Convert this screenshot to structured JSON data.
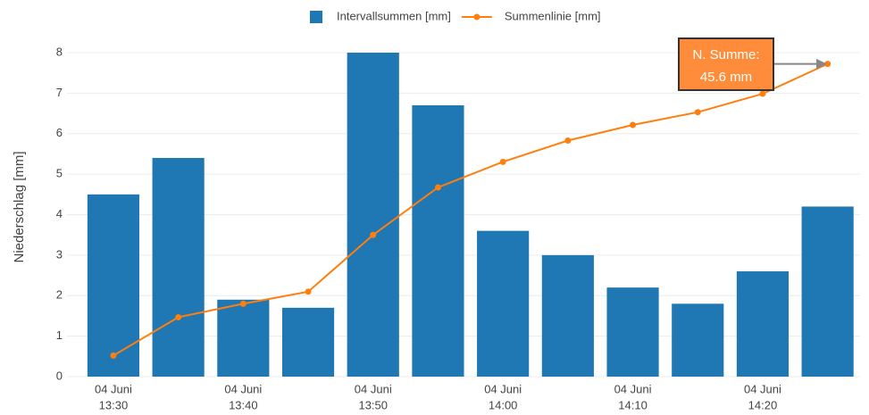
{
  "chart_data": {
    "type": "bar",
    "y_label": "Niederschlag [mm]",
    "categories": [
      [
        "04 Juni",
        "13:30"
      ],
      null,
      [
        "04 Juni",
        "13:40"
      ],
      null,
      [
        "04 Juni",
        "13:50"
      ],
      null,
      [
        "04 Juni",
        "14:00"
      ],
      null,
      [
        "04 Juni",
        "14:10"
      ],
      null,
      [
        "04 Juni",
        "14:20"
      ],
      null
    ],
    "series": [
      {
        "name": "Intervallsummen [mm]",
        "color": "#1f77b4",
        "type": "bar",
        "values": [
          4.5,
          5.4,
          1.9,
          1.7,
          8,
          6.7,
          3.6,
          3,
          2.2,
          1.8,
          2.6,
          4.2
        ]
      },
      {
        "name": "Summenlinie [mm]",
        "color": "#ff7f0e",
        "type": "line",
        "axis": "y2",
        "values": [
          4.5,
          9.9,
          11.8,
          13.5,
          21.5,
          28.2,
          31.8,
          34.8,
          37.0,
          38.8,
          41.4,
          45.6
        ]
      }
    ],
    "ylim": [
      0,
      8.3
    ],
    "yticks": [
      0,
      1,
      2,
      3,
      4,
      5,
      6,
      7,
      8
    ],
    "y2lim": [
      1.53,
      48.9
    ],
    "grid": true,
    "legend": "top",
    "annotation": {
      "lines": [
        "N. Summe:",
        "45.6 mm"
      ],
      "color": "#ff8c3a",
      "series": 1,
      "index": 11
    }
  }
}
